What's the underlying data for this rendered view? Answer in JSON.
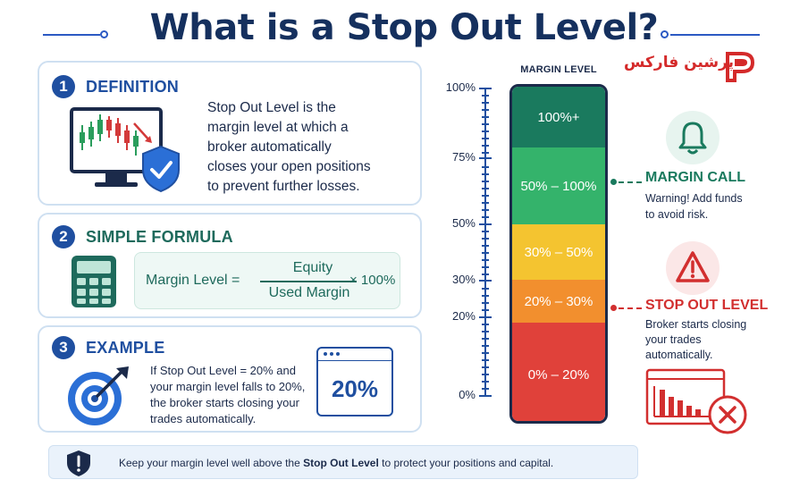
{
  "title": "What is a Stop Out Level?",
  "logo": {
    "text": "پرشین فارکس"
  },
  "sections": [
    {
      "number": "1",
      "title": "DEFINITION",
      "icon": "monitor-chart-shield-icon"
    },
    {
      "number": "2",
      "title": "SIMPLE FORMULA",
      "icon": "calculator-icon"
    },
    {
      "number": "3",
      "title": "EXAMPLE",
      "icon": "target-arrow-icon"
    }
  ],
  "definition": {
    "lines": [
      "Stop Out Level is the",
      "margin level at which a",
      "broker automatically",
      "closes your open positions",
      "to prevent further losses."
    ]
  },
  "formula": {
    "label": "Margin Level =",
    "numerator": "Equity",
    "denominator": "Used Margin",
    "multiplier": "× 100%"
  },
  "example": {
    "lines": [
      "If Stop Out Level = 20% and",
      "your margin level falls to 20%,",
      "the broker starts closing your",
      "trades automatically."
    ],
    "value": "20%"
  },
  "gauge": {
    "title": "MARGIN LEVEL",
    "ticks": [
      "100%",
      "75%",
      "50%",
      "30%",
      "20%",
      "0%"
    ],
    "segments": [
      {
        "label": "100%+",
        "color": "#1a7a5e"
      },
      {
        "label": "50% – 100%",
        "color": "#34b36b"
      },
      {
        "label": "30% – 50%",
        "color": "#f4c430"
      },
      {
        "label": "20% – 30%",
        "color": "#f28f2e"
      },
      {
        "label": "0% – 20%",
        "color": "#e0413a"
      }
    ]
  },
  "margin_call": {
    "title": "MARGIN CALL",
    "desc_lines": [
      "Warning! Add funds",
      "to avoid risk."
    ],
    "icon": "bell-icon",
    "color": "#1a7a5e"
  },
  "stop_out": {
    "title": "STOP OUT LEVEL",
    "desc_lines": [
      "Broker starts closing",
      "your trades",
      "automatically."
    ],
    "icon": "warning-triangle-icon",
    "color": "#d22f2f"
  },
  "footer": {
    "icon": "shield-exclamation-icon",
    "text_before": "Keep your margin level well above the ",
    "text_bold": "Stop Out Level",
    "text_after": " to protect your positions and capital."
  }
}
